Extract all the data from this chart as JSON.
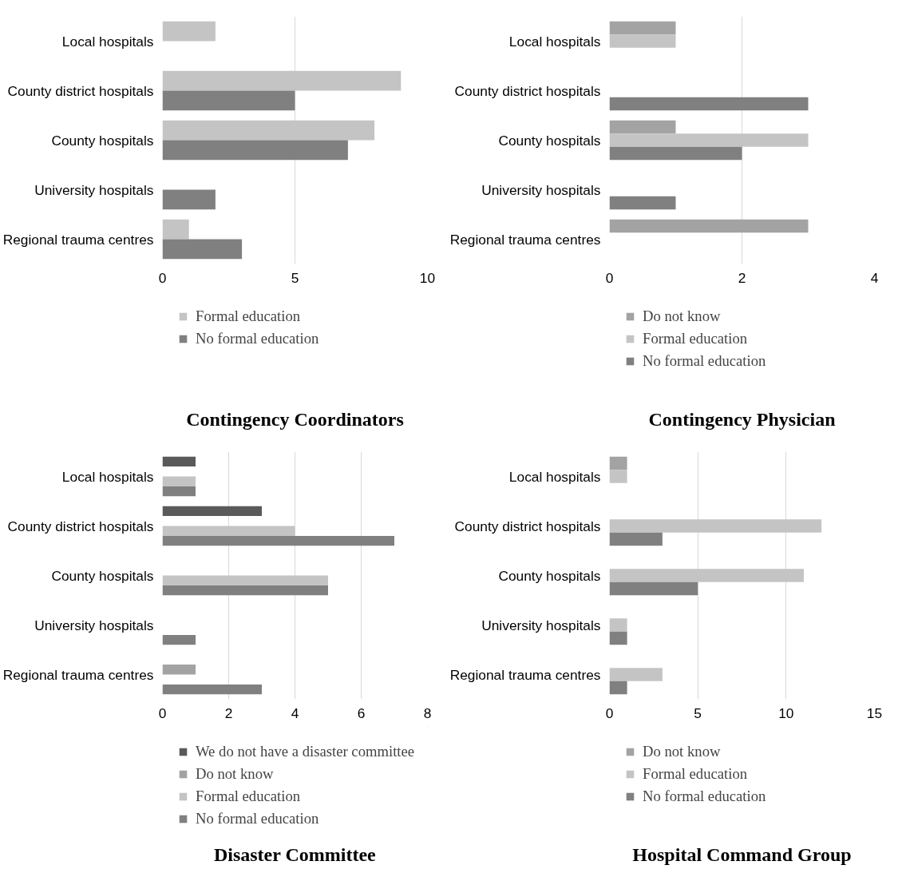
{
  "chart_data": [
    {
      "type": "bar",
      "orientation": "horizontal",
      "title": "Contingency Coordinators",
      "categories": [
        "Local hospitals",
        "County district hospitals",
        "County hospitals",
        "University hospitals",
        "Regional trauma centres"
      ],
      "series": [
        {
          "name": "Formal education",
          "color": "#c4c4c4",
          "values": [
            2,
            9,
            8,
            null,
            1
          ]
        },
        {
          "name": "No formal education",
          "color": "#808080",
          "values": [
            null,
            5,
            7,
            2,
            3
          ]
        }
      ],
      "xlim": [
        0,
        10
      ],
      "xticks": [
        0,
        5,
        10
      ],
      "grid": "x",
      "legend": "bottom"
    },
    {
      "type": "bar",
      "orientation": "horizontal",
      "title": "Contingency Physician",
      "categories": [
        "Local hospitals",
        "County district hospitals",
        "County hospitals",
        "University hospitals",
        "Regional trauma centres"
      ],
      "series": [
        {
          "name": "Do not know",
          "color": "#a3a3a3",
          "values": [
            1,
            null,
            1,
            null,
            3
          ]
        },
        {
          "name": "Formal education",
          "color": "#c4c4c4",
          "values": [
            1,
            null,
            3,
            null,
            null
          ]
        },
        {
          "name": "No formal education",
          "color": "#808080",
          "values": [
            null,
            3,
            2,
            1,
            null
          ]
        }
      ],
      "xlim": [
        0,
        4
      ],
      "xticks": [
        0,
        2,
        4
      ],
      "grid": "x",
      "legend": "bottom"
    },
    {
      "type": "bar",
      "orientation": "horizontal",
      "title": "Disaster Committee",
      "categories": [
        "Local hospitals",
        "County district hospitals",
        "County hospitals",
        "University hospitals",
        "Regional trauma centres"
      ],
      "series": [
        {
          "name": "We do not have a disaster committee",
          "color": "#5a5a5a",
          "values": [
            1,
            3,
            null,
            null,
            null
          ]
        },
        {
          "name": "Do not know",
          "color": "#a3a3a3",
          "values": [
            null,
            null,
            null,
            null,
            1
          ]
        },
        {
          "name": "Formal education",
          "color": "#c4c4c4",
          "values": [
            1,
            4,
            5,
            null,
            null
          ]
        },
        {
          "name": "No formal education",
          "color": "#808080",
          "values": [
            1,
            7,
            5,
            1,
            3
          ]
        }
      ],
      "xlim": [
        0,
        8
      ],
      "xticks": [
        0,
        2,
        4,
        6,
        8
      ],
      "grid": "x",
      "legend": "bottom"
    },
    {
      "type": "bar",
      "orientation": "horizontal",
      "title": "Hospital Command Group",
      "categories": [
        "Local hospitals",
        "County district hospitals",
        "County hospitals",
        "University hospitals",
        "Regional trauma centres"
      ],
      "series": [
        {
          "name": "Do not know",
          "color": "#a3a3a3",
          "values": [
            1,
            null,
            null,
            null,
            null
          ]
        },
        {
          "name": "Formal education",
          "color": "#c4c4c4",
          "values": [
            1,
            12,
            11,
            1,
            3
          ]
        },
        {
          "name": "No formal education",
          "color": "#808080",
          "values": [
            null,
            3,
            5,
            1,
            1
          ]
        }
      ],
      "xlim": [
        0,
        15
      ],
      "xticks": [
        0,
        5,
        10,
        15
      ],
      "grid": "x",
      "legend": "bottom"
    }
  ]
}
